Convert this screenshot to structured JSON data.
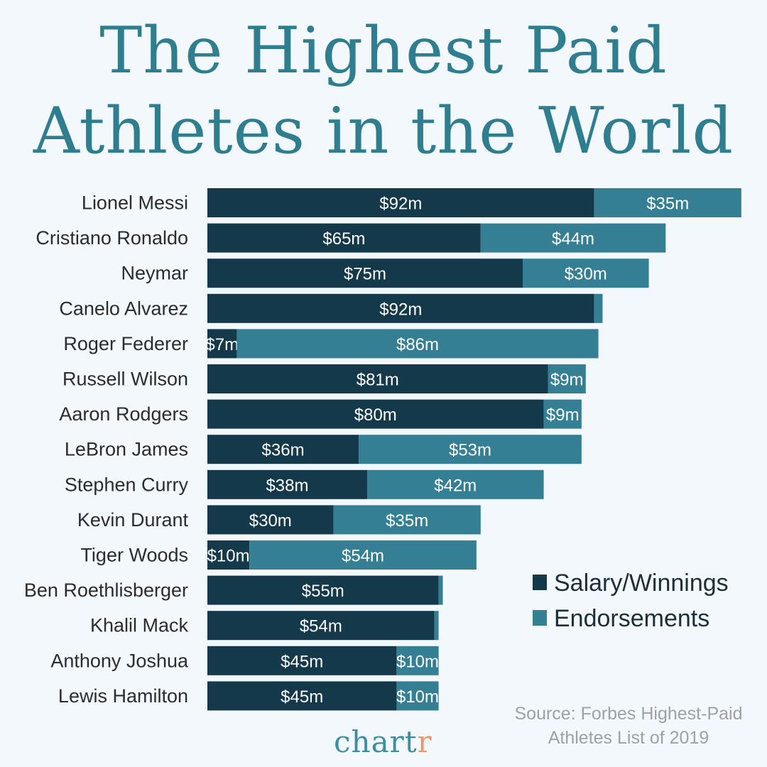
{
  "title": {
    "line1": "The Highest Paid",
    "line2": "Athletes in the World"
  },
  "colors": {
    "salary": "#14394a",
    "endorsements": "#347f93"
  },
  "legend": {
    "salary": "Salary/Winnings",
    "endorsements": "Endorsements"
  },
  "source": {
    "line1": "Source: Forbes Highest-Paid",
    "line2": "Athletes List of 2019"
  },
  "brand": {
    "main": "chart",
    "accent": "r"
  },
  "chart_data": {
    "type": "bar",
    "orientation": "horizontal",
    "stacked": true,
    "title": "The Highest Paid Athletes in the World",
    "legend_position": "right",
    "categories": [
      "Lionel Messi",
      "Cristiano Ronaldo",
      "Neymar",
      "Canelo Alvarez",
      "Roger Federer",
      "Russell Wilson",
      "Aaron Rodgers",
      "LeBron James",
      "Stephen Curry",
      "Kevin Durant",
      "Tiger Woods",
      "Ben Roethlisberger",
      "Khalil Mack",
      "Anthony Joshua",
      "Lewis Hamilton"
    ],
    "series": [
      {
        "name": "Salary/Winnings",
        "values": [
          92,
          65,
          75,
          92,
          7,
          81,
          80,
          36,
          38,
          30,
          10,
          55,
          54,
          45,
          45
        ],
        "labels": [
          "$92m",
          "$65m",
          "$75m",
          "$92m",
          "$7m",
          "$81m",
          "$80m",
          "$36m",
          "$38m",
          "$30m",
          "$10m",
          "$55m",
          "$54m",
          "$45m",
          "$45m"
        ]
      },
      {
        "name": "Endorsements",
        "values": [
          35,
          44,
          30,
          2,
          86,
          9,
          9,
          53,
          42,
          35,
          54,
          1,
          1,
          10,
          10
        ],
        "labels": [
          "$35m",
          "$44m",
          "$30m",
          "",
          "$86m",
          "$9m",
          "$9m",
          "$53m",
          "$42m",
          "$35m",
          "$54m",
          "",
          "",
          "$10m",
          "$10m"
        ]
      }
    ]
  }
}
